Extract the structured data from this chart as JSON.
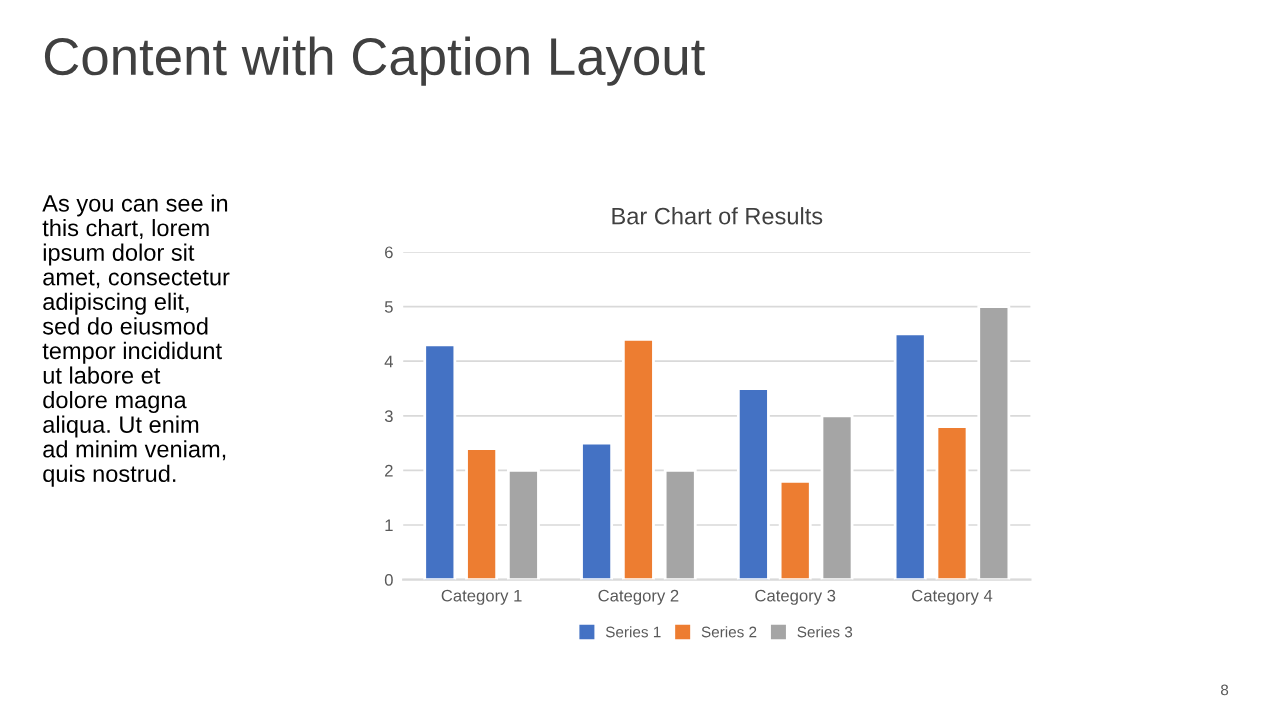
{
  "chart_data": {
    "type": "bar",
    "title": "Bar Chart of Results",
    "categories": [
      "Category 1",
      "Category 2",
      "Category 3",
      "Category 4"
    ],
    "series": [
      {
        "name": "Series 1",
        "color": "#4472c4",
        "values": [
          4.3,
          2.5,
          3.5,
          4.5
        ]
      },
      {
        "name": "Series 2",
        "color": "#ed7d31",
        "values": [
          2.4,
          4.4,
          1.8,
          2.8
        ]
      },
      {
        "name": "Series 3",
        "color": "#a5a5a5",
        "values": [
          2,
          2,
          3,
          5
        ]
      }
    ],
    "ylim": [
      0,
      6
    ],
    "yticks": [
      0,
      1,
      2,
      3,
      4,
      5,
      6
    ],
    "grid": "y",
    "legend": "bottom",
    "annotations": [
      "Content with Caption Layout",
      "As you can see in this chart, lorem ipsum dolor sit amet, consectetur adipiscing elit, sed do eiusmod tempor incididunt ut labore et dolore magna aliqua. Ut enim ad minim veniam, quis nostrud.",
      "8"
    ]
  }
}
